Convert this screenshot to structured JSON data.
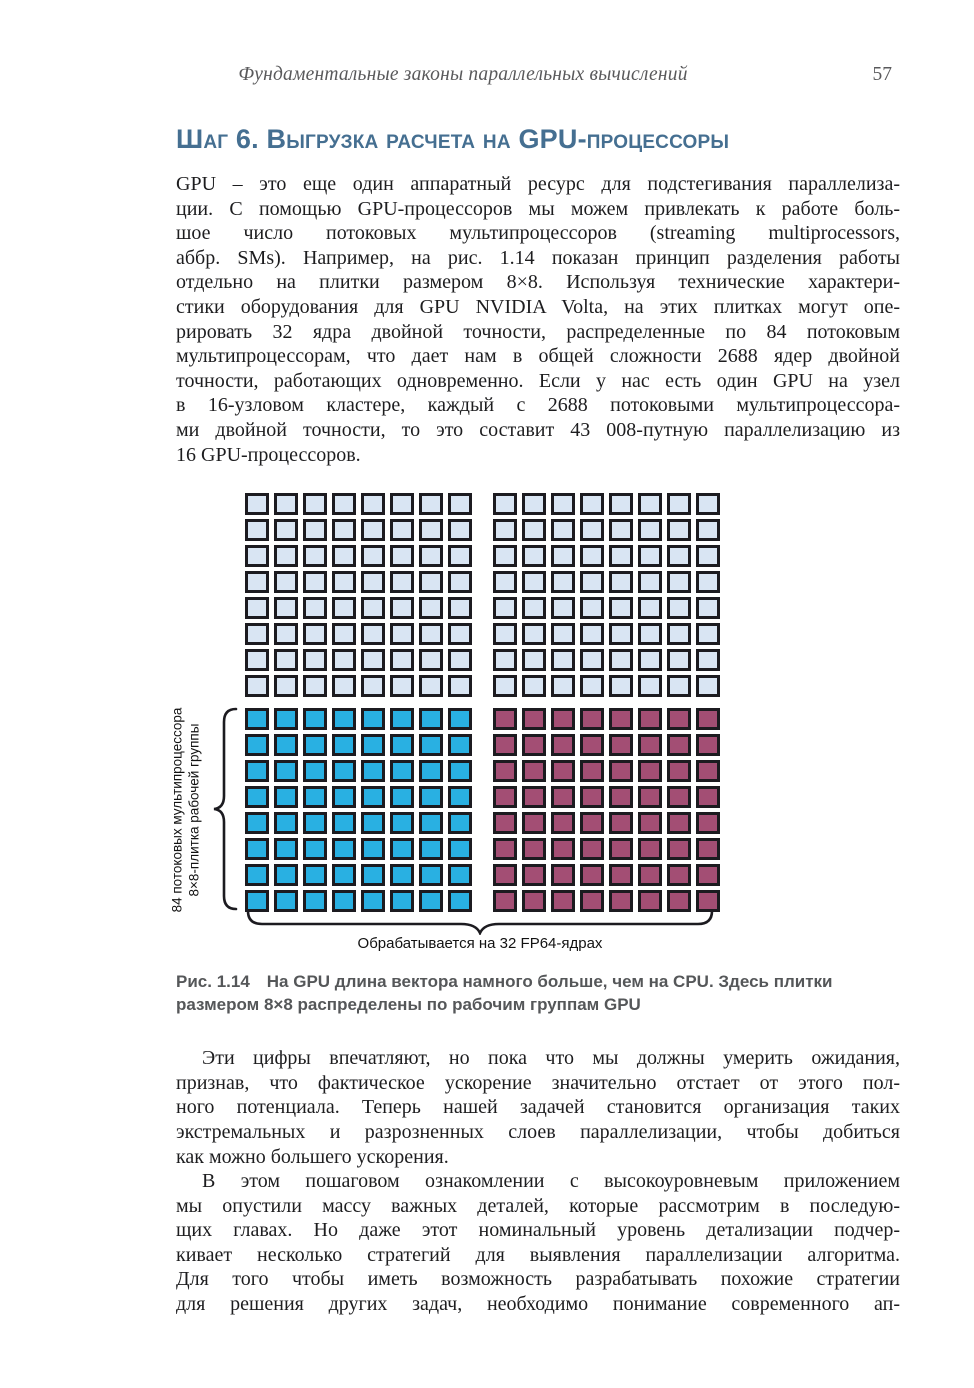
{
  "colors": {
    "text": "#1d1d1f",
    "heading_blue": "#456f91",
    "running_gray": "#59595b",
    "caption_gray": "#555759",
    "grid_border": "#1c1b20",
    "cell_light_blue": "#d9e5f3",
    "cell_cyan": "#29b0e2",
    "cell_maroon": "#a34e74"
  },
  "running_head": {
    "title": "Фундаментальные законы параллельных вычислений",
    "page_number": "57"
  },
  "heading": "Шаг 6. Выгрузка расчета на GPU-процессоры",
  "paragraphs": [
    {
      "lines": [
        "GPU – это еще один аппаратный ресурс для подстегивания параллелиза-",
        "ции. С помощью GPU-процессоров мы можем привлекать к работе боль-",
        "шое число потоковых мультипроцессоров (streaming multiprocessors,",
        "аббр. SMs). Например, на рис. 1.14 показан принцип разделения работы",
        "отдельно на плитки размером 8×8. Используя технические характери-",
        "стики оборудования для GPU NVIDIA Volta, на этих плитках могут опе-",
        "рировать 32 ядра двойной точности, распределенные по 84 потоковым",
        "мультипроцессорам, что дает нам в общей сложности 2688 ядер двойной",
        "точности, работающих одновременно. Если у нас есть один GPU на узел",
        "в 16-узловом кластере, каждый с 2688 потоковыми мультипроцессора-",
        "ми двойной точности, то это составит 43 008-путную параллелизацию из",
        "16 GPU-процессоров."
      ]
    },
    {
      "lines": [
        "Эти цифры впечатляют, но пока что мы должны умерить ожидания,",
        "признав, что фактическое ускорение значительно отстает от этого пол-",
        "ного потенциала. Теперь нашей задачей становится организация таких",
        "экстремальных и разрозненных слоев параллелизации, чтобы добиться",
        "как можно большего ускорения."
      ]
    },
    {
      "lines": [
        "В этом пошаговом ознакомлении с высокоуровневым приложением",
        "мы опустили массу важных деталей, которые рассмотрим в последую-",
        "щих главах. Но даже этот номинальный уровень детализации подчер-",
        "кивает несколько стратегий для выявления параллелизации алгоритма.",
        "Для того чтобы иметь возможность разрабатывать похожие стратегии",
        "для решения других задач, необходимо понимание современного ап-"
      ]
    }
  ],
  "figure": {
    "left_label_lines": [
      "84 потоковых мультипроцессора",
      "8×8-плитка рабочей группы"
    ],
    "bottom_label": "Обрабатывается на 32 FP64-ядрах",
    "blocks": [
      {
        "name": "top-left-tile-grid",
        "rows": 8,
        "cols": 8,
        "fill_key": "cell_light_blue"
      },
      {
        "name": "top-right-tile-grid",
        "rows": 8,
        "cols": 8,
        "fill_key": "cell_light_blue"
      },
      {
        "name": "workgroup-tile-grid-cyan",
        "rows": 8,
        "cols": 8,
        "fill_key": "cell_cyan"
      },
      {
        "name": "workgroup-tile-grid-maroon",
        "rows": 8,
        "cols": 8,
        "fill_key": "cell_maroon"
      }
    ]
  },
  "caption": {
    "lines": [
      "Рис. 1.14  На GPU длина вектора намного больше, чем на CPU. Здесь плитки",
      "размером 8×8 распределены по рабочим группам GPU"
    ]
  }
}
